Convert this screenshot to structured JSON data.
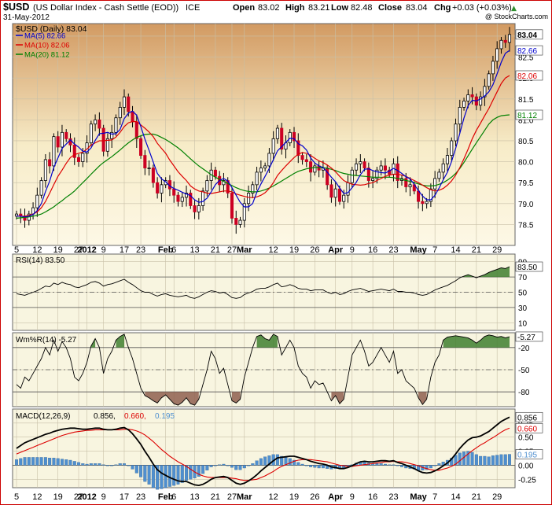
{
  "header": {
    "symbol": "$USD",
    "name": "(US Dollar Index - Cash Settle (EOD))",
    "exchange": "ICE",
    "date": "31-May-2012",
    "open_label": "Open",
    "open": "83.02",
    "high_label": "High",
    "high": "83.21",
    "low_label": "Low",
    "low": "82.48",
    "close_label": "Close",
    "close": "83.04",
    "chg_label": "Chg",
    "chg": "+0.03 (+0.03%)",
    "chg_arrow": "▲",
    "watermark": "@ StockCharts.com"
  },
  "legend": {
    "main": "$USD (Daily) 83.04",
    "ma5": "MA(5) 82.66",
    "ma10": "MA(10) 82.06",
    "ma20": "MA(20) 81.12"
  },
  "x_ticks": [
    {
      "label": "5",
      "index": 0
    },
    {
      "label": "12",
      "index": 5
    },
    {
      "label": "19",
      "index": 10
    },
    {
      "label": "27",
      "index": 15
    },
    {
      "label": "2012",
      "index": 17,
      "bold": true
    },
    {
      "label": "9",
      "index": 21
    },
    {
      "label": "17",
      "index": 26
    },
    {
      "label": "23",
      "index": 30
    },
    {
      "label": "Feb",
      "index": 36,
      "bold": true
    },
    {
      "label": "6",
      "index": 38
    },
    {
      "label": "13",
      "index": 43
    },
    {
      "label": "21",
      "index": 48
    },
    {
      "label": "27",
      "index": 52
    },
    {
      "label": "Mar",
      "index": 55,
      "bold": true
    },
    {
      "label": "12",
      "index": 62
    },
    {
      "label": "19",
      "index": 67
    },
    {
      "label": "26",
      "index": 72
    },
    {
      "label": "Apr",
      "index": 77,
      "bold": true
    },
    {
      "label": "9",
      "index": 81
    },
    {
      "label": "16",
      "index": 86
    },
    {
      "label": "23",
      "index": 91
    },
    {
      "label": "May",
      "index": 97,
      "bold": true
    },
    {
      "label": "7",
      "index": 101
    },
    {
      "label": "14",
      "index": 106
    },
    {
      "label": "21",
      "index": 111
    },
    {
      "label": "29",
      "index": 116
    }
  ],
  "colors": {
    "panel_bg": "#f8f5e0",
    "price_bg_top": "#d9a570",
    "price_bg_mid": "#faf3d8",
    "up_candle": "#000000",
    "down_candle": "#cc0022",
    "ma5": "#0000cc",
    "ma10": "#dd0000",
    "ma20": "#008000",
    "macd_line": "#000000",
    "signal_line": "#dd0000",
    "histogram": "#4f8fcf",
    "overbought_fill": "#3f7f2f",
    "oversold_fill": "#8f5f4f",
    "frame": "#cc0000"
  },
  "chart_data": {
    "type": "line",
    "price": {
      "title": "$USD (Daily) 83.04",
      "ylim": [
        78.0,
        83.3
      ],
      "y_ticks": [
        78.5,
        79.0,
        79.5,
        80.0,
        80.5,
        81.0,
        81.5,
        82.0,
        82.5,
        83.0
      ],
      "last_labels": [
        "83.04",
        "82.66",
        "82.06",
        "81.12"
      ],
      "close": [
        78.75,
        78.7,
        78.6,
        78.75,
        78.9,
        79.2,
        79.55,
        80.05,
        79.9,
        80.6,
        80.35,
        80.7,
        80.55,
        80.4,
        80.1,
        80.0,
        80.2,
        80.45,
        80.9,
        81.0,
        80.8,
        80.25,
        80.55,
        80.7,
        81.05,
        81.3,
        81.55,
        81.2,
        80.95,
        80.55,
        80.15,
        79.85,
        79.85,
        79.5,
        79.25,
        79.45,
        79.55,
        79.35,
        79.2,
        79.05,
        79.15,
        79.25,
        78.95,
        78.8,
        78.95,
        79.3,
        79.55,
        79.8,
        79.65,
        79.45,
        79.55,
        79.25,
        78.65,
        78.5,
        78.6,
        79.0,
        79.25,
        79.45,
        79.75,
        79.85,
        79.9,
        80.2,
        80.55,
        80.8,
        80.3,
        80.45,
        80.7,
        80.5,
        80.15,
        80.05,
        80.0,
        79.75,
        79.9,
        79.8,
        79.85,
        79.45,
        79.15,
        79.35,
        79.05,
        79.2,
        79.5,
        79.8,
        79.95,
        80.0,
        79.85,
        79.55,
        79.6,
        79.8,
        79.9,
        79.8,
        79.7,
        79.95,
        79.55,
        79.6,
        79.4,
        79.45,
        79.3,
        79.05,
        79.0,
        79.05,
        79.35,
        79.6,
        79.75,
        79.95,
        80.15,
        80.5,
        80.9,
        81.3,
        81.45,
        81.6,
        81.55,
        81.35,
        81.55,
        81.8,
        82.1,
        82.4,
        82.7,
        82.9,
        82.85,
        83.04
      ],
      "ma5": [
        78.7,
        78.7,
        78.68,
        78.7,
        78.74,
        78.83,
        79.0,
        79.29,
        79.54,
        79.86,
        80.09,
        80.32,
        80.42,
        80.52,
        80.42,
        80.35,
        80.25,
        80.23,
        80.33,
        80.51,
        80.67,
        80.68,
        80.7,
        80.66,
        80.67,
        80.77,
        81.03,
        81.16,
        81.21,
        81.11,
        80.84,
        80.54,
        80.27,
        79.99,
        79.72,
        79.59,
        79.52,
        79.42,
        79.36,
        79.32,
        79.27,
        79.23,
        79.19,
        79.09,
        79.03,
        79.05,
        79.13,
        79.28,
        79.45,
        79.55,
        79.6,
        79.54,
        79.38,
        79.2,
        79.03,
        78.92,
        78.92,
        79.0,
        79.27,
        79.47,
        79.65,
        79.84,
        80.05,
        80.26,
        80.36,
        80.46,
        80.56,
        80.55,
        80.43,
        80.38,
        80.28,
        80.09,
        79.97,
        79.9,
        79.86,
        79.75,
        79.63,
        79.52,
        79.37,
        79.24,
        79.26,
        79.38,
        79.51,
        79.69,
        79.82,
        79.83,
        79.79,
        79.76,
        79.74,
        79.73,
        79.78,
        79.84,
        79.79,
        79.72,
        79.64,
        79.59,
        79.46,
        79.31,
        79.18,
        79.09,
        79.09,
        79.2,
        79.37,
        79.57,
        79.75,
        80.0,
        80.32,
        80.68,
        81.04,
        81.34,
        81.47,
        81.45,
        81.5,
        81.57,
        81.67,
        81.84,
        82.1,
        82.38,
        82.59,
        82.66
      ],
      "ma10": [
        78.7,
        78.7,
        78.7,
        78.72,
        78.75,
        78.8,
        78.9,
        79.05,
        79.25,
        79.45,
        79.65,
        79.8,
        79.96,
        80.1,
        80.17,
        80.2,
        80.23,
        80.3,
        80.4,
        80.45,
        80.5,
        80.5,
        80.51,
        80.52,
        80.59,
        80.7,
        80.84,
        80.93,
        80.96,
        80.96,
        80.88,
        80.8,
        80.71,
        80.6,
        80.44,
        80.32,
        80.2,
        80.04,
        79.9,
        79.76,
        79.65,
        79.55,
        79.42,
        79.35,
        79.3,
        79.28,
        79.25,
        79.24,
        79.26,
        79.28,
        79.3,
        79.3,
        79.28,
        79.23,
        79.2,
        79.17,
        79.15,
        79.14,
        79.16,
        79.2,
        79.26,
        79.36,
        79.5,
        79.67,
        79.79,
        79.9,
        80.0,
        80.1,
        80.18,
        80.22,
        80.2,
        80.15,
        80.08,
        80.02,
        79.98,
        79.92,
        79.85,
        79.76,
        79.65,
        79.55,
        79.5,
        79.46,
        79.45,
        79.44,
        79.45,
        79.48,
        79.5,
        79.55,
        79.6,
        79.65,
        79.68,
        79.7,
        79.7,
        79.68,
        79.65,
        79.6,
        79.55,
        79.5,
        79.44,
        79.38,
        79.33,
        79.3,
        79.32,
        79.36,
        79.44,
        79.54,
        79.68,
        79.86,
        80.07,
        80.3,
        80.55,
        80.75,
        80.92,
        81.1,
        81.27,
        81.47,
        81.67,
        81.87,
        82.0,
        82.06
      ],
      "ma20": [
        78.65,
        78.66,
        78.67,
        78.68,
        78.7,
        78.72,
        78.75,
        78.8,
        78.86,
        78.92,
        79.0,
        79.07,
        79.15,
        79.22,
        79.3,
        79.4,
        79.5,
        79.6,
        79.7,
        79.8,
        79.9,
        79.98,
        80.05,
        80.12,
        80.2,
        80.28,
        80.37,
        80.45,
        80.52,
        80.58,
        80.62,
        80.65,
        80.66,
        80.66,
        80.63,
        80.58,
        80.53,
        80.47,
        80.4,
        80.33,
        80.25,
        80.16,
        80.07,
        79.98,
        79.9,
        79.83,
        79.76,
        79.69,
        79.63,
        79.58,
        79.53,
        79.48,
        79.43,
        79.38,
        79.34,
        79.31,
        79.29,
        79.28,
        79.28,
        79.3,
        79.33,
        79.37,
        79.42,
        79.48,
        79.54,
        79.6,
        79.66,
        79.72,
        79.77,
        79.8,
        79.83,
        79.85,
        79.86,
        79.86,
        79.86,
        79.84,
        79.82,
        79.79,
        79.75,
        79.72,
        79.7,
        79.68,
        79.67,
        79.66,
        79.65,
        79.64,
        79.63,
        79.63,
        79.63,
        79.63,
        79.63,
        79.62,
        79.6,
        79.58,
        79.55,
        79.53,
        79.5,
        79.47,
        79.44,
        79.42,
        79.42,
        79.43,
        79.46,
        79.5,
        79.56,
        79.63,
        79.72,
        79.84,
        79.98,
        80.14,
        80.3,
        80.45,
        80.6,
        80.75,
        80.9,
        81.0,
        81.06,
        81.1,
        81.11,
        81.12
      ]
    },
    "rsi": {
      "title": "RSI(14) 83.50",
      "ylim": [
        0,
        100
      ],
      "y_ticks": [
        10,
        30,
        50,
        70,
        90
      ],
      "ref_lines": [
        70,
        50,
        30
      ],
      "last_label": "83.50",
      "values": [
        48,
        47,
        46,
        48,
        50,
        52,
        55,
        58,
        57,
        62,
        60,
        63,
        61,
        60,
        57,
        56,
        58,
        60,
        63,
        64,
        62,
        58,
        60,
        61,
        63,
        65,
        67,
        63,
        60,
        56,
        52,
        50,
        50,
        47,
        45,
        47,
        48,
        46,
        45,
        44,
        45,
        46,
        43,
        42,
        44,
        47,
        50,
        52,
        51,
        49,
        50,
        47,
        43,
        42,
        43,
        47,
        49,
        51,
        54,
        55,
        55,
        57,
        60,
        62,
        57,
        58,
        60,
        58,
        55,
        54,
        54,
        52,
        53,
        53,
        53,
        50,
        48,
        50,
        47,
        48,
        51,
        53,
        54,
        55,
        53,
        51,
        52,
        53,
        54,
        53,
        52,
        54,
        51,
        51,
        50,
        50,
        49,
        47,
        46,
        47,
        50,
        53,
        55,
        57,
        59,
        62,
        65,
        69,
        71,
        73,
        71,
        69,
        71,
        73,
        76,
        78,
        80,
        82,
        81,
        83.5
      ]
    },
    "williams": {
      "title": "Wm%R(14) -5.27",
      "ylim": [
        -100,
        0
      ],
      "y_ticks": [
        -20,
        -50,
        -80
      ],
      "ref_lines": [
        -20,
        -50,
        -80
      ],
      "last_label": "-5.27",
      "values": [
        -70,
        -75,
        -60,
        -65,
        -55,
        -45,
        -35,
        -20,
        -30,
        -10,
        -25,
        -12,
        -20,
        -35,
        -60,
        -65,
        -55,
        -40,
        -18,
        -8,
        -20,
        -55,
        -35,
        -25,
        -10,
        -5,
        -2,
        -20,
        -35,
        -55,
        -75,
        -85,
        -88,
        -92,
        -95,
        -88,
        -84,
        -90,
        -96,
        -98,
        -94,
        -88,
        -96,
        -98,
        -90,
        -70,
        -50,
        -25,
        -35,
        -55,
        -48,
        -70,
        -92,
        -95,
        -90,
        -60,
        -40,
        -20,
        -5,
        -3,
        -8,
        -10,
        -2,
        -5,
        -30,
        -20,
        -10,
        -20,
        -45,
        -55,
        -60,
        -75,
        -65,
        -70,
        -68,
        -80,
        -92,
        -85,
        -96,
        -90,
        -60,
        -30,
        -20,
        -10,
        -25,
        -45,
        -40,
        -30,
        -20,
        -30,
        -40,
        -25,
        -55,
        -50,
        -65,
        -70,
        -75,
        -88,
        -97,
        -90,
        -60,
        -40,
        -30,
        -10,
        -6,
        -5,
        -4,
        -5,
        -6,
        -7,
        -10,
        -14,
        -10,
        -5,
        -3,
        -4,
        -6,
        -5,
        -7,
        -5.27
      ]
    },
    "macd": {
      "title": "MACD(12,26,9) 0.856, 0.660, 0.195",
      "parts": [
        "MACD(12,26,9)",
        "0.856,",
        "0.660,",
        "0.195"
      ],
      "ylim": [
        -0.4,
        1.0
      ],
      "y_ticks": [
        -0.25,
        0.0,
        0.25,
        0.5,
        0.75
      ],
      "last_labels": [
        "0.856",
        "0.660",
        "0.195"
      ],
      "macd": [
        0.3,
        0.35,
        0.4,
        0.43,
        0.46,
        0.49,
        0.52,
        0.55,
        0.57,
        0.6,
        0.62,
        0.64,
        0.65,
        0.66,
        0.66,
        0.65,
        0.64,
        0.64,
        0.65,
        0.66,
        0.66,
        0.64,
        0.63,
        0.63,
        0.64,
        0.66,
        0.67,
        0.63,
        0.56,
        0.47,
        0.37,
        0.25,
        0.14,
        0.02,
        -0.08,
        -0.14,
        -0.18,
        -0.22,
        -0.25,
        -0.28,
        -0.29,
        -0.29,
        -0.32,
        -0.35,
        -0.36,
        -0.34,
        -0.3,
        -0.25,
        -0.22,
        -0.21,
        -0.2,
        -0.22,
        -0.27,
        -0.32,
        -0.34,
        -0.32,
        -0.28,
        -0.23,
        -0.17,
        -0.1,
        -0.04,
        0.02,
        0.08,
        0.13,
        0.14,
        0.15,
        0.16,
        0.16,
        0.14,
        0.12,
        0.1,
        0.07,
        0.05,
        0.03,
        0.02,
        0.0,
        -0.03,
        -0.04,
        -0.06,
        -0.06,
        -0.04,
        -0.01,
        0.03,
        0.06,
        0.07,
        0.06,
        0.06,
        0.07,
        0.08,
        0.08,
        0.07,
        0.08,
        0.05,
        0.03,
        0.0,
        -0.03,
        -0.06,
        -0.1,
        -0.13,
        -0.14,
        -0.13,
        -0.1,
        -0.06,
        -0.01,
        0.04,
        0.11,
        0.2,
        0.3,
        0.38,
        0.45,
        0.49,
        0.5,
        0.52,
        0.56,
        0.6,
        0.66,
        0.72,
        0.78,
        0.82,
        0.856
      ],
      "signal": [
        0.2,
        0.23,
        0.26,
        0.29,
        0.32,
        0.35,
        0.38,
        0.41,
        0.44,
        0.47,
        0.5,
        0.53,
        0.55,
        0.57,
        0.59,
        0.6,
        0.61,
        0.62,
        0.62,
        0.63,
        0.63,
        0.63,
        0.63,
        0.63,
        0.63,
        0.63,
        0.64,
        0.64,
        0.63,
        0.61,
        0.58,
        0.54,
        0.48,
        0.42,
        0.35,
        0.28,
        0.22,
        0.16,
        0.11,
        0.06,
        0.02,
        -0.02,
        -0.07,
        -0.12,
        -0.16,
        -0.19,
        -0.21,
        -0.22,
        -0.22,
        -0.22,
        -0.22,
        -0.22,
        -0.23,
        -0.24,
        -0.26,
        -0.27,
        -0.27,
        -0.26,
        -0.25,
        -0.22,
        -0.19,
        -0.15,
        -0.11,
        -0.06,
        -0.02,
        0.01,
        0.04,
        0.07,
        0.09,
        0.1,
        0.1,
        0.1,
        0.09,
        0.08,
        0.07,
        0.06,
        0.04,
        0.02,
        0.0,
        -0.01,
        -0.02,
        -0.02,
        -0.01,
        0.0,
        0.01,
        0.02,
        0.03,
        0.04,
        0.05,
        0.06,
        0.06,
        0.07,
        0.06,
        0.06,
        0.05,
        0.03,
        0.01,
        -0.01,
        -0.04,
        -0.06,
        -0.08,
        -0.09,
        -0.09,
        -0.07,
        -0.05,
        -0.02,
        0.02,
        0.08,
        0.14,
        0.2,
        0.26,
        0.31,
        0.36,
        0.4,
        0.45,
        0.49,
        0.54,
        0.59,
        0.63,
        0.66
      ],
      "histogram": [
        0.1,
        0.12,
        0.14,
        0.14,
        0.14,
        0.14,
        0.14,
        0.14,
        0.13,
        0.13,
        0.12,
        0.11,
        0.1,
        0.09,
        0.07,
        0.05,
        0.03,
        0.02,
        0.03,
        0.03,
        0.03,
        0.01,
        0.0,
        0.0,
        0.01,
        0.03,
        0.03,
        -0.01,
        -0.07,
        -0.14,
        -0.21,
        -0.29,
        -0.34,
        -0.4,
        -0.43,
        -0.42,
        -0.4,
        -0.38,
        -0.36,
        -0.34,
        -0.31,
        -0.27,
        -0.25,
        -0.23,
        -0.2,
        -0.15,
        -0.09,
        -0.03,
        0.0,
        0.01,
        0.02,
        0.0,
        -0.04,
        -0.08,
        -0.08,
        -0.05,
        -0.01,
        0.03,
        0.08,
        0.12,
        0.15,
        0.17,
        0.19,
        0.19,
        0.16,
        0.14,
        0.12,
        0.09,
        0.05,
        0.02,
        0.0,
        -0.03,
        -0.04,
        -0.05,
        -0.05,
        -0.06,
        -0.07,
        -0.06,
        -0.06,
        -0.05,
        -0.02,
        0.01,
        0.04,
        0.06,
        0.06,
        0.04,
        0.03,
        0.03,
        0.03,
        0.02,
        0.01,
        0.01,
        -0.01,
        -0.03,
        -0.05,
        -0.06,
        -0.07,
        -0.09,
        -0.09,
        -0.08,
        -0.05,
        -0.01,
        0.03,
        0.06,
        0.09,
        0.13,
        0.18,
        0.22,
        0.24,
        0.25,
        0.23,
        0.19,
        0.16,
        0.16,
        0.15,
        0.17,
        0.18,
        0.19,
        0.19,
        0.195
      ]
    }
  }
}
